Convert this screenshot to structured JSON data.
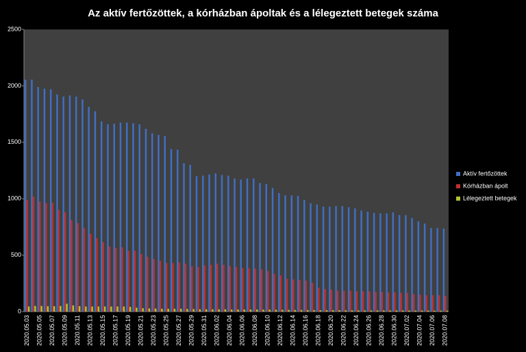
{
  "chart_data": {
    "type": "bar",
    "title": "Az aktív fertőzöttek, a kórházban ápoltak és a lélegeztett betegek száma",
    "categories": [
      "2020.05.03",
      null,
      "2020.05.05",
      null,
      "2020.05.07",
      null,
      "2020.05.09",
      null,
      "2020.05.11",
      null,
      "2020.05.13",
      null,
      "2020.05.15",
      null,
      "2020.05.17",
      null,
      "2020.05.19",
      null,
      "2020.05.21",
      null,
      "2020.05.23",
      null,
      "2020.05.25",
      null,
      "2020.05.27",
      null,
      "2020.05.29",
      null,
      "2020.05.31",
      null,
      "2020.06.02",
      null,
      "2020.06.04",
      null,
      "2020.06.06",
      null,
      "2020.06.08",
      null,
      "2020.06.10",
      null,
      "2020.06.12",
      null,
      "2020.06.14",
      null,
      "2020.06.16",
      null,
      "2020.06.18",
      null,
      "2020.06.20",
      null,
      "2020.06.22",
      null,
      "2020.06.24",
      null,
      "2020.06.26",
      null,
      "2020.06.28",
      null,
      "2020.06.30",
      null,
      "2020.07.02",
      null,
      "2020.07.04",
      null,
      "2020.07.06",
      null,
      "2020.07.08"
    ],
    "series": [
      {
        "name": "Aktív fertőzöttek",
        "color": "#3f6fc4",
        "values": [
          2055,
          2055,
          1990,
          1975,
          1970,
          1925,
          1905,
          1915,
          1905,
          1880,
          1815,
          1775,
          1685,
          1660,
          1665,
          1675,
          1675,
          1670,
          1660,
          1620,
          1580,
          1565,
          1555,
          1440,
          1435,
          1315,
          1300,
          1200,
          1205,
          1215,
          1225,
          1210,
          1205,
          1180,
          1170,
          1180,
          1180,
          1140,
          1130,
          1095,
          1050,
          1030,
          1030,
          1025,
          990,
          960,
          950,
          930,
          930,
          935,
          935,
          925,
          915,
          895,
          885,
          875,
          870,
          870,
          880,
          855,
          855,
          830,
          800,
          780,
          740,
          740,
          735
        ]
      },
      {
        "name": "Kórházban ápolt",
        "color": "#c0302f",
        "values": [
          990,
          1020,
          975,
          960,
          965,
          900,
          880,
          810,
          785,
          740,
          690,
          650,
          615,
          575,
          565,
          570,
          540,
          540,
          510,
          485,
          465,
          450,
          430,
          430,
          435,
          425,
          400,
          395,
          410,
          415,
          425,
          415,
          405,
          395,
          385,
          385,
          380,
          375,
          360,
          335,
          320,
          290,
          285,
          280,
          275,
          255,
          210,
          200,
          195,
          185,
          185,
          185,
          180,
          180,
          180,
          175,
          175,
          170,
          170,
          165,
          165,
          155,
          150,
          145,
          145,
          145,
          140
        ]
      },
      {
        "name": "Lélegeztett betegek",
        "color": "#b3c42c",
        "values": [
          45,
          50,
          50,
          48,
          48,
          50,
          70,
          55,
          48,
          45,
          45,
          45,
          45,
          45,
          45,
          45,
          42,
          35,
          30,
          28,
          27,
          25,
          25,
          25,
          25,
          23,
          22,
          20,
          20,
          20,
          20,
          20,
          18,
          18,
          18,
          18,
          18,
          17,
          17,
          16,
          15,
          15,
          14,
          14,
          13,
          13,
          12,
          12,
          12,
          12,
          11,
          11,
          10,
          10,
          10,
          10,
          10,
          10,
          10,
          10,
          9,
          9,
          9,
          9,
          8,
          8,
          8
        ]
      }
    ],
    "ylim": [
      0,
      2500
    ],
    "yticks": [
      0,
      500,
      1000,
      1500,
      2000,
      2500
    ],
    "legend": "right"
  }
}
